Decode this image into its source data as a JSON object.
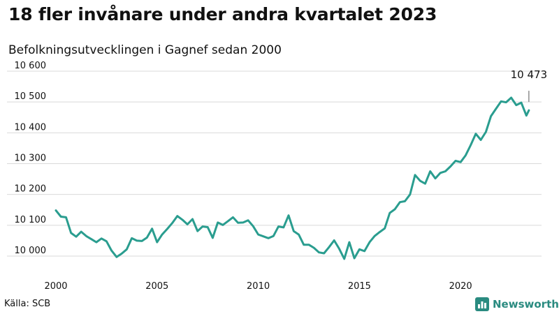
{
  "chart_data": {
    "type": "line",
    "title": "18 fler invånare under andra kvartalet 2023",
    "subtitle": "Befolkningsutvecklingen i Gagnef sedan 2000",
    "xlabel": "",
    "ylabel": "",
    "ylim": [
      9980,
      10600
    ],
    "xlim": [
      2000,
      2024
    ],
    "y_ticks": [
      10000,
      10100,
      10200,
      10300,
      10400,
      10500,
      10600
    ],
    "y_tick_labels": [
      "10 000",
      "10 100",
      "10 200",
      "10 300",
      "10 400",
      "10 500",
      "10 600"
    ],
    "x_ticks": [
      2000,
      2005,
      2010,
      2015,
      2020
    ],
    "x_tick_labels": [
      "2000",
      "2005",
      "2010",
      "2015",
      "2020"
    ],
    "grid": "horizontal",
    "line_color": "#2a9d8f",
    "annotation": {
      "label": "10 473",
      "x": 2023.375,
      "y": 10473
    },
    "series": [
      {
        "x": [
          2000.0,
          2000.25,
          2000.5,
          2000.75,
          2001.0,
          2001.25,
          2001.5,
          2001.75,
          2002.0,
          2002.25,
          2002.5,
          2002.75,
          2003.0,
          2003.25,
          2003.5,
          2003.75,
          2004.0,
          2004.25,
          2004.5,
          2004.75,
          2005.0,
          2005.25,
          2005.5,
          2005.75,
          2006.0,
          2006.25,
          2006.5,
          2006.75,
          2007.0,
          2007.25,
          2007.5,
          2007.75,
          2008.0,
          2008.25,
          2008.5,
          2008.75,
          2009.0,
          2009.25,
          2009.5,
          2009.75,
          2010.0,
          2010.25,
          2010.5,
          2010.75,
          2011.0,
          2011.25,
          2011.5,
          2011.75,
          2012.0,
          2012.25,
          2012.5,
          2012.75,
          2013.0,
          2013.25,
          2013.5,
          2013.75,
          2014.0,
          2014.25,
          2014.5,
          2014.75,
          2015.0,
          2015.25,
          2015.5,
          2015.75,
          2016.0,
          2016.25,
          2016.5,
          2016.75,
          2017.0,
          2017.25,
          2017.5,
          2017.75,
          2018.0,
          2018.25,
          2018.5,
          2018.75,
          2019.0,
          2019.25,
          2019.5,
          2019.75,
          2020.0,
          2020.25,
          2020.5,
          2020.75,
          2021.0,
          2021.25,
          2021.5,
          2021.75,
          2022.0,
          2022.25,
          2022.5,
          2022.75,
          2023.0,
          2023.25,
          2023.375
        ],
        "values": [
          10148,
          10128,
          10126,
          10075,
          10063,
          10079,
          10065,
          10055,
          10045,
          10057,
          10048,
          10018,
          9997,
          10008,
          10022,
          10058,
          10050,
          10049,
          10060,
          10089,
          10045,
          10070,
          10088,
          10107,
          10130,
          10118,
          10103,
          10120,
          10081,
          10096,
          10094,
          10059,
          10109,
          10101,
          10113,
          10126,
          10108,
          10109,
          10116,
          10097,
          10070,
          10064,
          10058,
          10065,
          10096,
          10093,
          10132,
          10081,
          10070,
          10037,
          10037,
          10027,
          10012,
          10009,
          10029,
          10051,
          10024,
          9991,
          10045,
          9993,
          10022,
          10016,
          10045,
          10065,
          10078,
          10090,
          10140,
          10152,
          10175,
          10178,
          10200,
          10263,
          10244,
          10235,
          10275,
          10252,
          10270,
          10275,
          10291,
          10309,
          10305,
          10327,
          10360,
          10397,
          10377,
          10403,
          10454,
          10478,
          10502,
          10499,
          10514,
          10490,
          10498,
          10456,
          10473
        ]
      }
    ]
  },
  "source": "Källa: SCB",
  "brand": "Newsworthy"
}
